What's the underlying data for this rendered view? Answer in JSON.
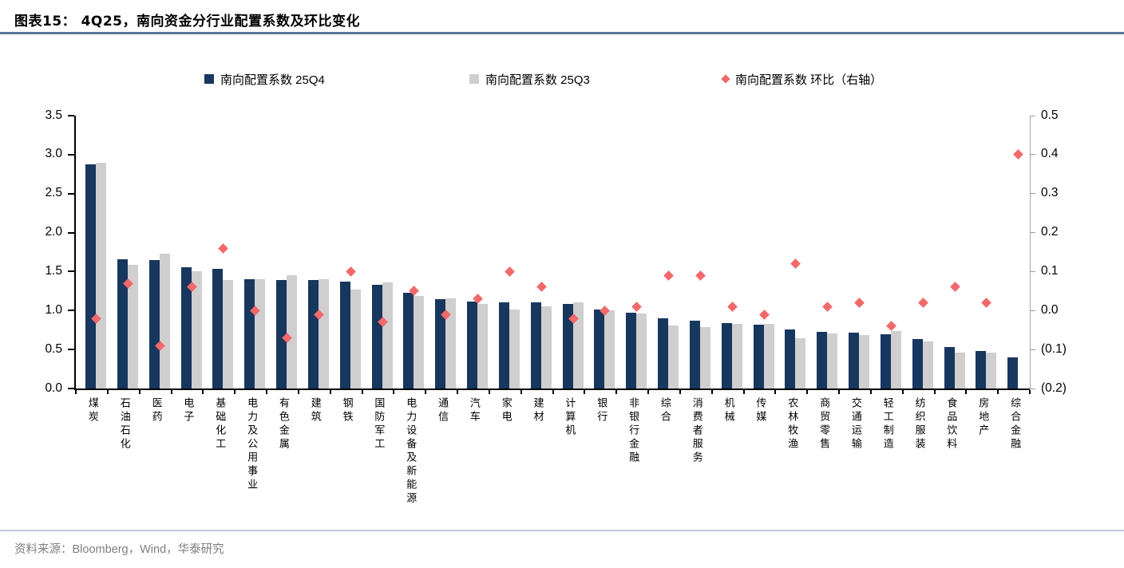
{
  "figure": {
    "title": "图表15：  4Q25，南向资金分行业配置系数及环比变化",
    "source": "资料来源：Bloomberg，Wind，华泰研究"
  },
  "colors": {
    "bar_25q4": "#17375E",
    "bar_25q3": "#D0CECE",
    "diamond_qoq": "#F2696B",
    "title_rule": "#5a7699",
    "footer_rule": "#bcc9d6",
    "axis": "#000000",
    "right_axis_line": "#a6a6a6",
    "source_text": "#7f7f7f"
  },
  "legend": [
    {
      "label": "南向配置系数 25Q4",
      "marker": "square",
      "color": "#17375E"
    },
    {
      "label": "南向配置系数 25Q3",
      "marker": "square",
      "color": "#D0CECE"
    },
    {
      "label": "南向配置系数 环比（右轴）",
      "marker": "diamond",
      "color": "#F2696B"
    }
  ],
  "chart_data": {
    "type": "bar",
    "title": "4Q25，南向资金分行业配置系数及环比变化",
    "grid": false,
    "legend_position": "top",
    "categories": [
      "煤炭",
      "石油石化",
      "医药",
      "电子",
      "基础化工",
      "电力及公用事业",
      "有色金属",
      "建筑",
      "钢铁",
      "国防军工",
      "电力设备及新能源",
      "通信",
      "汽车",
      "家电",
      "建材",
      "计算机",
      "银行",
      "非银行金融",
      "综合",
      "消费者服务",
      "机械",
      "传媒",
      "农林牧渔",
      "商贸零售",
      "交通运输",
      "轻工制造",
      "纺织服装",
      "食品饮料",
      "房地产",
      "综合金融"
    ],
    "series": [
      {
        "name": "南向配置系数 25Q4",
        "type": "bar",
        "axis": "left",
        "color": "#17375E",
        "values": [
          2.88,
          1.66,
          1.65,
          1.56,
          1.54,
          1.4,
          1.39,
          1.39,
          1.37,
          1.33,
          1.23,
          1.15,
          1.12,
          1.11,
          1.11,
          1.09,
          1.01,
          0.97,
          0.9,
          0.87,
          0.84,
          0.82,
          0.76,
          0.73,
          0.72,
          0.7,
          0.63,
          0.53,
          0.48,
          0.4
        ]
      },
      {
        "name": "南向配置系数 25Q3",
        "type": "bar",
        "axis": "left",
        "color": "#D0CECE",
        "values": [
          2.9,
          1.59,
          1.73,
          1.5,
          1.39,
          1.4,
          1.45,
          1.4,
          1.27,
          1.36,
          1.19,
          1.16,
          1.09,
          1.01,
          1.05,
          1.11,
          1.0,
          0.96,
          0.81,
          0.79,
          0.83,
          0.83,
          0.64,
          0.71,
          0.69,
          0.74,
          0.6,
          0.46,
          0.46,
          0.0
        ]
      },
      {
        "name": "南向配置系数 环比（右轴）",
        "type": "scatter",
        "marker": "diamond",
        "axis": "right",
        "color": "#F2696B",
        "values": [
          -0.02,
          0.07,
          -0.09,
          0.06,
          0.16,
          0.0,
          -0.07,
          -0.01,
          0.1,
          -0.03,
          0.05,
          -0.01,
          0.03,
          0.1,
          0.06,
          -0.02,
          0.0,
          0.01,
          0.09,
          0.09,
          0.01,
          -0.01,
          0.12,
          0.01,
          0.02,
          -0.04,
          0.02,
          0.06,
          0.02,
          0.4
        ]
      }
    ],
    "left_axis": {
      "min": 0,
      "max": 3.5,
      "ticks": [
        "3.5",
        "3.0",
        "2.5",
        "2.0",
        "1.5",
        "1.0",
        "0.5",
        "0.0"
      ]
    },
    "right_axis": {
      "min": -0.2,
      "max": 0.5,
      "ticks": [
        "0.5",
        "0.4",
        "0.3",
        "0.2",
        "0.1",
        "0.0",
        "(0.1)",
        "(0.2)"
      ]
    }
  }
}
